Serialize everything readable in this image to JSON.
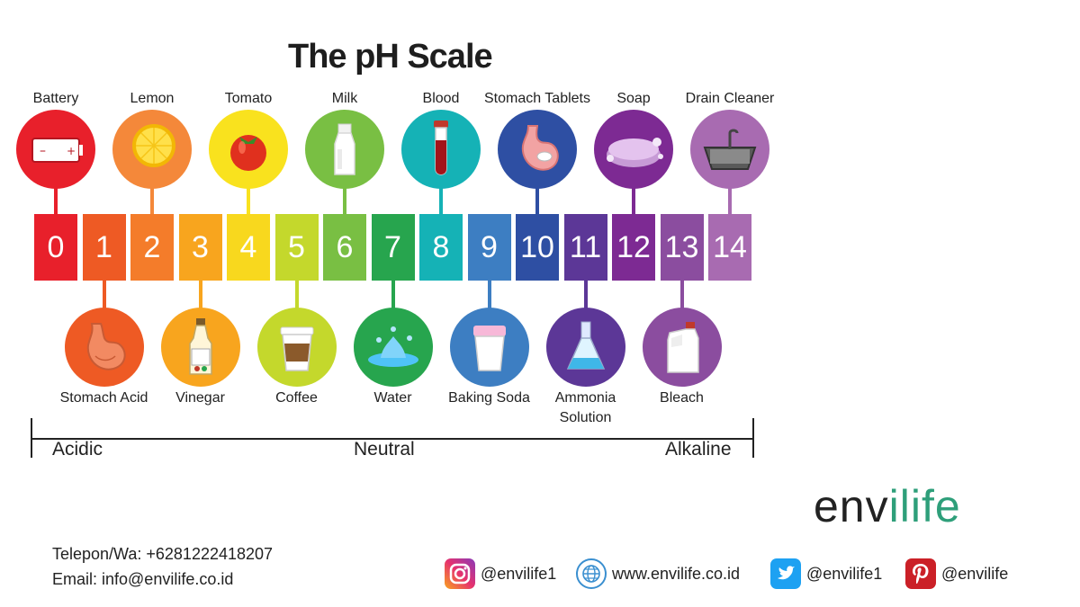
{
  "title": "The pH Scale",
  "scale": {
    "numbers": [
      "0",
      "1",
      "2",
      "3",
      "4",
      "5",
      "6",
      "7",
      "8",
      "9",
      "10",
      "11",
      "12",
      "13",
      "14"
    ],
    "colors": [
      "#e8202b",
      "#ee5a24",
      "#f47c2a",
      "#f8a51e",
      "#f8d81e",
      "#c4d82c",
      "#79bf43",
      "#27a54e",
      "#15b2b6",
      "#3d7ec2",
      "#2e4fa3",
      "#5c3797",
      "#7d2a93",
      "#8b4d9f",
      "#a86bb1"
    ]
  },
  "top_items": [
    {
      "label": "Battery",
      "ph_index": 0,
      "icon": "battery-icon",
      "color": "#e8202b"
    },
    {
      "label": "Lemon",
      "ph_index": 2,
      "icon": "lemon-icon",
      "color": "#f4883a"
    },
    {
      "label": "Tomato",
      "ph_index": 4,
      "icon": "tomato-icon",
      "color": "#f9e21e"
    },
    {
      "label": "Milk",
      "ph_index": 6,
      "icon": "milk-bottle-icon",
      "color": "#79bf43"
    },
    {
      "label": "Blood",
      "ph_index": 8,
      "icon": "blood-tube-icon",
      "color": "#15b2b6"
    },
    {
      "label": "Stomach Tablets",
      "ph_index": 10,
      "icon": "stomach-tablet-icon",
      "color": "#2e4fa3"
    },
    {
      "label": "Soap",
      "ph_index": 12,
      "icon": "soap-icon",
      "color": "#7d2a93"
    },
    {
      "label": "Drain Cleaner",
      "ph_index": 14,
      "icon": "sink-icon",
      "color": "#a86bb1"
    }
  ],
  "bottom_items": [
    {
      "label": "Stomach Acid",
      "ph_index": 1,
      "icon": "stomach-icon",
      "color": "#ee5a24"
    },
    {
      "label": "Vinegar",
      "ph_index": 3,
      "icon": "vinegar-bottle-icon",
      "color": "#f8a51e"
    },
    {
      "label": "Coffee",
      "ph_index": 5,
      "icon": "coffee-cup-icon",
      "color": "#c4d82c"
    },
    {
      "label": "Water",
      "ph_index": 7,
      "icon": "water-splash-icon",
      "color": "#27a54e"
    },
    {
      "label": "Baking Soda",
      "ph_index": 9,
      "icon": "baking-soda-icon",
      "color": "#3d7ec2"
    },
    {
      "label": "Ammonia Solution",
      "label_line1": "Ammonia",
      "label_line2": "Solution",
      "ph_index": 11,
      "icon": "flask-icon",
      "color": "#5c3797"
    },
    {
      "label": "Bleach",
      "ph_index": 13,
      "icon": "bleach-jug-icon",
      "color": "#8b4d9f"
    }
  ],
  "range_labels": {
    "acidic": "Acidic",
    "neutral": "Neutral",
    "alkaline": "Alkaline"
  },
  "brand": {
    "logo_dark": "env",
    "logo_green": "ilife",
    "accent": "#2e9f7a"
  },
  "contact": {
    "phone": "Telepon/Wa: +6281222418207",
    "email": "Email: info@envilife.co.id"
  },
  "social": [
    {
      "icon": "instagram-icon",
      "text": "@envilife1",
      "color": "#d6249f"
    },
    {
      "icon": "globe-icon",
      "text": "www.envilife.co.id",
      "color": "#3a8fd0"
    },
    {
      "icon": "twitter-icon",
      "text": "@envilife1",
      "color": "#1da1f2"
    },
    {
      "icon": "pinterest-icon",
      "text": "@envilife",
      "color": "#cb2027"
    }
  ]
}
